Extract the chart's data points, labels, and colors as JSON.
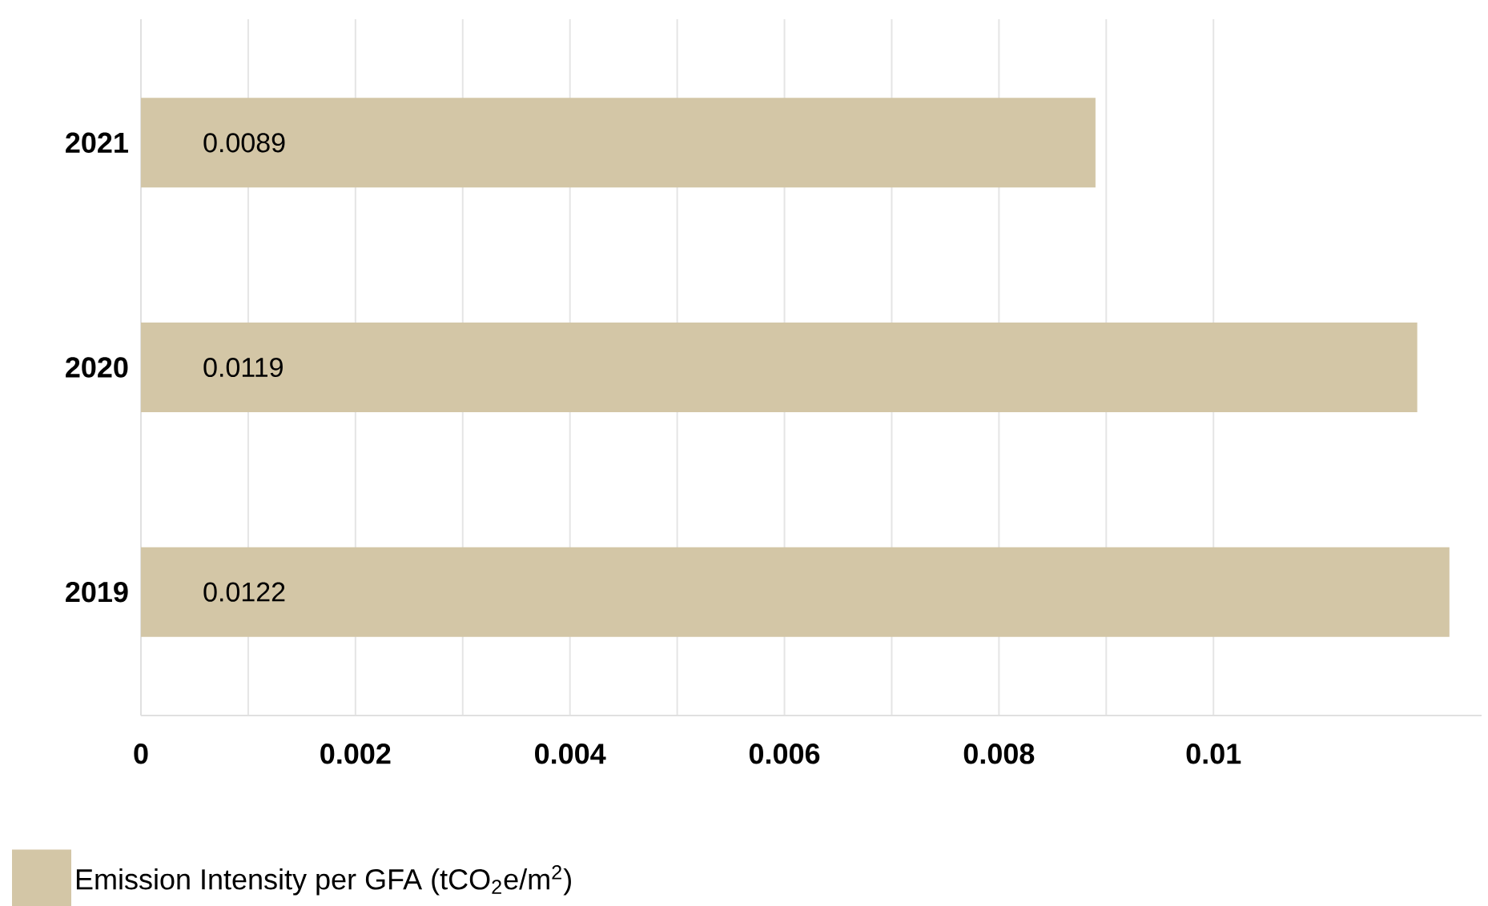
{
  "chart_data": {
    "type": "bar",
    "orientation": "horizontal",
    "categories": [
      "2021",
      "2020",
      "2019"
    ],
    "series": [
      {
        "name": "Emission Intensity per GFA  (tCO$_{2}$e/m$^{2}$)",
        "color": "#d3c6a6",
        "values": [
          0.0089,
          0.0119,
          0.0122
        ]
      }
    ],
    "xlim": [
      0,
      0.0125
    ],
    "xticks": [
      0,
      {
        "value": 0.001,
        "label": null
      },
      {
        "value": 0.002,
        "label": "0.002"
      },
      {
        "value": 0.003,
        "label": null
      },
      {
        "value": 0.004,
        "label": "0.004"
      },
      {
        "value": 0.005,
        "label": null
      },
      {
        "value": 0.006,
        "label": "0.006"
      },
      {
        "value": 0.007,
        "label": null
      },
      {
        "value": 0.008,
        "label": "0.008"
      },
      {
        "value": 0.009,
        "label": null
      },
      {
        "value": 0.01,
        "label": "0.01"
      }
    ],
    "grid": "x",
    "legend": "bottom",
    "data_labels": true
  }
}
